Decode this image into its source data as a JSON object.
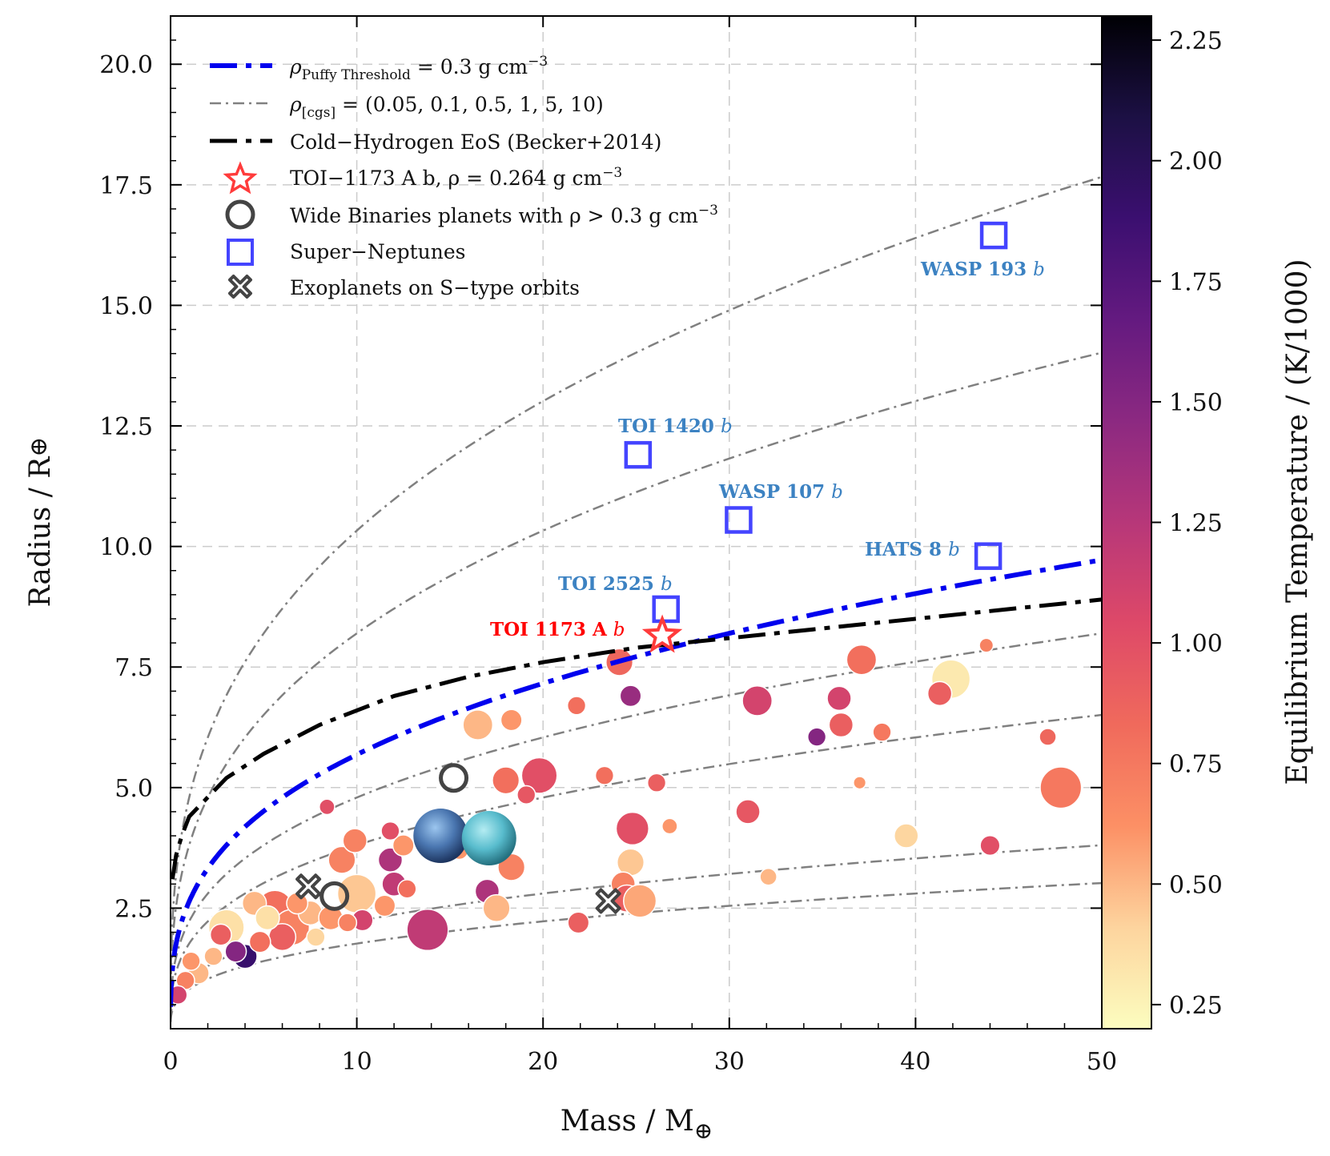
{
  "chart_data": {
    "type": "scatter",
    "xlabel": "Mass / M",
    "ylabel": "Radius / R",
    "earth_symbol": "⊕",
    "xlim": [
      0,
      50
    ],
    "ylim": [
      0,
      21
    ],
    "xticks": [
      "0",
      "10",
      "20",
      "30",
      "40",
      "50"
    ],
    "yticks": [
      "2.5",
      "5.0",
      "7.5",
      "10.0",
      "12.5",
      "15.0",
      "17.5",
      "20.0"
    ],
    "grid": true,
    "colorbar": {
      "label": "Equilibrium Temperature / (K/1000)",
      "range": [
        0.2,
        2.3
      ],
      "ticks": [
        "0.25",
        "0.50",
        "0.75",
        "1.00",
        "1.25",
        "1.50",
        "1.75",
        "2.00",
        "2.25"
      ],
      "colormap": "magma_r",
      "stops": [
        "#fcfdbf",
        "#fdd49e",
        "#fc9065",
        "#f06a5c",
        "#de4968",
        "#b73779",
        "#8c2981",
        "#641a80",
        "#3b0f70",
        "#1c1044",
        "#000004"
      ]
    },
    "legend": [
      {
        "key": "puffy",
        "text": "ρ",
        "sub": "Puffy Threshold",
        "rest": " = 0.3 g cm",
        "sup": "−3",
        "color": "#0000ee"
      },
      {
        "key": "cgs",
        "text": "ρ",
        "sub": "[cgs]",
        "rest": " = (0.05, 0.1, 0.5, 1, 5, 10)",
        "color": "#808080"
      },
      {
        "key": "eos",
        "text": "Cold−Hydrogen EoS (Becker+2014)",
        "color": "#000000"
      },
      {
        "key": "toi",
        "text": "TOI−1173 A b, ρ = 0.264 g cm",
        "sup": "−3",
        "color": "#ff3b3b"
      },
      {
        "key": "wide",
        "text": "Wide Binaries planets with ρ  >  0.3 g cm",
        "sup": "−3",
        "color": "#444444"
      },
      {
        "key": "sn",
        "text": "Super−Neptunes",
        "color": "#4444ff"
      },
      {
        "key": "stype",
        "text": "Exoplanets on S−type orbits",
        "color": "#444444"
      }
    ],
    "density_curves": {
      "label": "ρ [cgs]",
      "values_cgs": [
        0.05,
        0.1,
        0.5,
        1,
        5,
        10
      ],
      "color": "#808080"
    },
    "puffy_threshold_cgs": 0.3,
    "eos_curve": {
      "name": "Cold-Hydrogen EoS (Becker+2014)",
      "x": [
        0.1,
        0.3,
        0.6,
        1,
        1.5,
        2,
        3,
        5,
        8,
        12,
        16,
        20,
        25,
        30,
        35,
        40,
        45,
        50
      ],
      "y": [
        3.1,
        3.6,
        4.0,
        4.4,
        4.6,
        4.8,
        5.2,
        5.7,
        6.3,
        6.9,
        7.3,
        7.6,
        7.9,
        8.1,
        8.3,
        8.5,
        8.7,
        8.9
      ]
    },
    "toi1173": {
      "label": "TOI 1173 A b",
      "x": 26.4,
      "y": 8.15,
      "color": "#ff3b3b"
    },
    "super_neptunes": [
      {
        "name": "WASP 193 b",
        "x": 44.2,
        "y": 16.45
      },
      {
        "name": "TOI 1420 b",
        "x": 25.1,
        "y": 11.9
      },
      {
        "name": "WASP 107 b",
        "x": 30.5,
        "y": 10.55
      },
      {
        "name": "HATS 8 b",
        "x": 43.9,
        "y": 9.8
      },
      {
        "name": "TOI 2525 b",
        "x": 26.6,
        "y": 8.7
      }
    ],
    "wide_binaries": [
      {
        "x": 15.2,
        "y": 5.2
      },
      {
        "x": 8.8,
        "y": 2.75
      }
    ],
    "s_type": [
      {
        "x": 7.4,
        "y": 2.95
      },
      {
        "x": 23.5,
        "y": 2.65
      }
    ],
    "solar_system": [
      {
        "name": "Neptune",
        "x": 14.5,
        "y": 4.0,
        "color": "#4a76b0"
      },
      {
        "name": "Uranus",
        "x": 17.1,
        "y": 3.95,
        "color": "#58bccd"
      }
    ],
    "planets": [
      {
        "x": 4.0,
        "y": 1.5,
        "t": 1.9,
        "s": 0.5
      },
      {
        "x": 3.0,
        "y": 2.1,
        "t": 0.35,
        "s": 0.9
      },
      {
        "x": 5.6,
        "y": 2.5,
        "t": 0.8,
        "s": 0.9
      },
      {
        "x": 6.5,
        "y": 2.1,
        "t": 0.7,
        "s": 0.9
      },
      {
        "x": 10.0,
        "y": 2.8,
        "t": 0.45,
        "s": 1.0
      },
      {
        "x": 13.8,
        "y": 2.05,
        "t": 1.2,
        "s": 1.1
      },
      {
        "x": 7.5,
        "y": 2.4,
        "t": 0.5,
        "s": 0.5
      },
      {
        "x": 9.2,
        "y": 3.5,
        "t": 0.7,
        "s": 0.6
      },
      {
        "x": 9.9,
        "y": 3.9,
        "t": 0.7,
        "s": 0.5
      },
      {
        "x": 11.8,
        "y": 3.5,
        "t": 1.3,
        "s": 0.5
      },
      {
        "x": 12.0,
        "y": 3.0,
        "t": 1.2,
        "s": 0.5
      },
      {
        "x": 12.5,
        "y": 3.8,
        "t": 0.6,
        "s": 0.4
      },
      {
        "x": 16.5,
        "y": 6.3,
        "t": 0.5,
        "s": 0.7
      },
      {
        "x": 18.3,
        "y": 6.4,
        "t": 0.6,
        "s": 0.4
      },
      {
        "x": 19.8,
        "y": 5.25,
        "t": 1.0,
        "s": 0.9
      },
      {
        "x": 18.0,
        "y": 5.15,
        "t": 0.8,
        "s": 0.6
      },
      {
        "x": 19.1,
        "y": 4.85,
        "t": 0.95,
        "s": 0.3
      },
      {
        "x": 24.1,
        "y": 7.6,
        "t": 0.85,
        "s": 0.6
      },
      {
        "x": 24.7,
        "y": 6.9,
        "t": 1.4,
        "s": 0.4
      },
      {
        "x": 21.8,
        "y": 6.7,
        "t": 0.8,
        "s": 0.3
      },
      {
        "x": 24.8,
        "y": 4.15,
        "t": 1.0,
        "s": 0.8
      },
      {
        "x": 24.7,
        "y": 3.45,
        "t": 0.45,
        "s": 0.6
      },
      {
        "x": 24.3,
        "y": 3.0,
        "t": 0.7,
        "s": 0.5
      },
      {
        "x": 24.5,
        "y": 2.7,
        "t": 0.9,
        "s": 0.6
      },
      {
        "x": 25.2,
        "y": 2.65,
        "t": 0.55,
        "s": 0.8
      },
      {
        "x": 21.9,
        "y": 2.2,
        "t": 0.9,
        "s": 0.4
      },
      {
        "x": 17.0,
        "y": 2.85,
        "t": 1.3,
        "s": 0.5
      },
      {
        "x": 17.5,
        "y": 2.5,
        "t": 0.5,
        "s": 0.6
      },
      {
        "x": 18.3,
        "y": 3.35,
        "t": 0.7,
        "s": 0.6
      },
      {
        "x": 23.3,
        "y": 5.25,
        "t": 0.8,
        "s": 0.3
      },
      {
        "x": 26.1,
        "y": 5.1,
        "t": 0.9,
        "s": 0.3
      },
      {
        "x": 31.5,
        "y": 6.8,
        "t": 1.1,
        "s": 0.7
      },
      {
        "x": 35.9,
        "y": 6.85,
        "t": 1.1,
        "s": 0.5
      },
      {
        "x": 36.0,
        "y": 6.3,
        "t": 0.9,
        "s": 0.5
      },
      {
        "x": 34.7,
        "y": 6.05,
        "t": 1.5,
        "s": 0.3
      },
      {
        "x": 37.1,
        "y": 7.65,
        "t": 0.8,
        "s": 0.7
      },
      {
        "x": 38.2,
        "y": 6.15,
        "t": 0.75,
        "s": 0.3
      },
      {
        "x": 41.9,
        "y": 7.25,
        "t": 0.3,
        "s": 1.0
      },
      {
        "x": 41.3,
        "y": 6.95,
        "t": 0.9,
        "s": 0.5
      },
      {
        "x": 47.8,
        "y": 5.0,
        "t": 0.75,
        "s": 1.1
      },
      {
        "x": 47.1,
        "y": 6.05,
        "t": 0.85,
        "s": 0.25
      },
      {
        "x": 44.0,
        "y": 3.8,
        "t": 1.0,
        "s": 0.35
      },
      {
        "x": 39.5,
        "y": 4.0,
        "t": 0.4,
        "s": 0.5
      },
      {
        "x": 31.0,
        "y": 4.5,
        "t": 0.95,
        "s": 0.5
      },
      {
        "x": 32.1,
        "y": 3.15,
        "t": 0.5,
        "s": 0.25
      },
      {
        "x": 8.6,
        "y": 2.3,
        "t": 0.6,
        "s": 0.5
      },
      {
        "x": 6.0,
        "y": 1.9,
        "t": 0.9,
        "s": 0.6
      },
      {
        "x": 4.5,
        "y": 2.6,
        "t": 0.5,
        "s": 0.5
      },
      {
        "x": 2.7,
        "y": 1.95,
        "t": 0.9,
        "s": 0.4
      },
      {
        "x": 3.5,
        "y": 1.6,
        "t": 1.5,
        "s": 0.4
      },
      {
        "x": 1.5,
        "y": 1.15,
        "t": 0.5,
        "s": 0.4
      },
      {
        "x": 0.8,
        "y": 1.0,
        "t": 0.7,
        "s": 0.3
      },
      {
        "x": 0.4,
        "y": 0.7,
        "t": 1.1,
        "s": 0.3
      },
      {
        "x": 1.1,
        "y": 1.4,
        "t": 0.6,
        "s": 0.3
      },
      {
        "x": 2.3,
        "y": 1.5,
        "t": 0.5,
        "s": 0.3
      },
      {
        "x": 4.8,
        "y": 1.8,
        "t": 0.8,
        "s": 0.4
      },
      {
        "x": 5.2,
        "y": 2.3,
        "t": 0.35,
        "s": 0.5
      },
      {
        "x": 6.8,
        "y": 2.6,
        "t": 0.6,
        "s": 0.4
      },
      {
        "x": 7.8,
        "y": 1.9,
        "t": 0.4,
        "s": 0.3
      },
      {
        "x": 10.3,
        "y": 2.25,
        "t": 1.1,
        "s": 0.4
      },
      {
        "x": 11.5,
        "y": 2.55,
        "t": 0.6,
        "s": 0.4
      },
      {
        "x": 12.7,
        "y": 2.9,
        "t": 0.8,
        "s": 0.3
      },
      {
        "x": 15.5,
        "y": 3.7,
        "t": 0.6,
        "s": 0.3
      },
      {
        "x": 8.4,
        "y": 4.6,
        "t": 1.0,
        "s": 0.2
      },
      {
        "x": 11.8,
        "y": 4.1,
        "t": 1.0,
        "s": 0.3
      },
      {
        "x": 9.5,
        "y": 2.2,
        "t": 0.7,
        "s": 0.3
      },
      {
        "x": 26.8,
        "y": 4.2,
        "t": 0.6,
        "s": 0.2
      },
      {
        "x": 43.8,
        "y": 7.95,
        "t": 0.7,
        "s": 0.15
      },
      {
        "x": 37.0,
        "y": 5.1,
        "t": 0.6,
        "s": 0.1
      }
    ],
    "annotations": [
      {
        "text": "WASP 193",
        "italic": "b",
        "color": "#3c82c2"
      },
      {
        "text": "TOI 1420",
        "italic": "b",
        "color": "#3c82c2"
      },
      {
        "text": "WASP 107",
        "italic": "b",
        "color": "#3c82c2"
      },
      {
        "text": "HATS 8",
        "italic": "b",
        "color": "#3c82c2"
      },
      {
        "text": "TOI 2525",
        "italic": "b",
        "color": "#3c82c2"
      },
      {
        "text": "TOI 1173 A",
        "italic": "b",
        "color": "#ff0000"
      }
    ]
  }
}
